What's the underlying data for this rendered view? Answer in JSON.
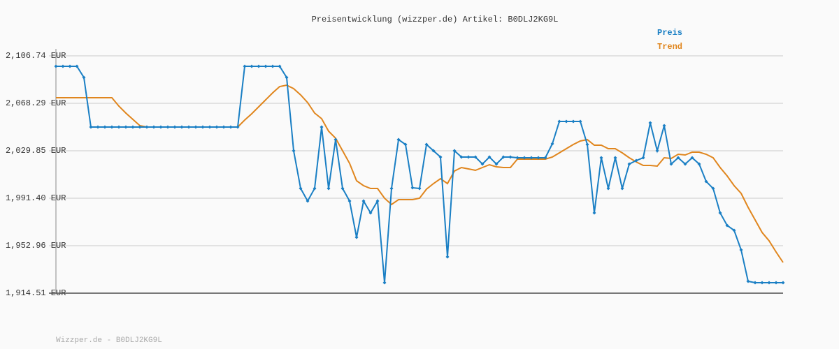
{
  "chart_data": {
    "type": "line",
    "title": "Preisentwicklung (wizzper.de) Artikel: B0DLJ2KG9L",
    "footer": "Wizzper.de - B0DLJ2KG9L",
    "ylim": [
      1914.51,
      2106.74
    ],
    "yticks": [
      {
        "value": 1914.51,
        "label": "1,914.51 EUR"
      },
      {
        "value": 1952.96,
        "label": "1,952.96 EUR"
      },
      {
        "value": 1991.4,
        "label": "1,991.40 EUR"
      },
      {
        "value": 2029.85,
        "label": "2,029.85 EUR"
      },
      {
        "value": 2068.29,
        "label": "2,068.29 EUR"
      },
      {
        "value": 2106.74,
        "label": "2,106.74 EUR"
      }
    ],
    "grid": true,
    "legend": "top-right",
    "series": [
      {
        "name": "Preis",
        "color": "#1a7fc4",
        "values": [
          2098.26,
          2098.26,
          2098.26,
          2098.26,
          2089.21,
          2049.07,
          2049.07,
          2049.07,
          2049.07,
          2049.07,
          2049.07,
          2049.07,
          2049.07,
          2049.07,
          2049.07,
          2049.07,
          2049.07,
          2049.07,
          2049.07,
          2049.07,
          2049.07,
          2049.07,
          2049.07,
          2049.07,
          2049.07,
          2049.07,
          2049.07,
          2098.26,
          2098.26,
          2098.26,
          2098.26,
          2098.26,
          2098.26,
          2089.21,
          2029.85,
          1999.32,
          1989.14,
          1999.32,
          2049.07,
          1999.32,
          2038.89,
          1999.32,
          1989.14,
          1959.74,
          1989.14,
          1979.53,
          1989.14,
          1922.99,
          1999.32,
          2038.89,
          2034.94,
          1999.88,
          1999.32,
          2034.94,
          2029.85,
          2024.76,
          1943.91,
          2029.85,
          2024.76,
          2024.76,
          2024.76,
          2019.11,
          2024.76,
          2019.11,
          2024.76,
          2024.76,
          2024.19,
          2024.19,
          2024.19,
          2024.19,
          2024.19,
          2035.5,
          2053.59,
          2053.59,
          2053.59,
          2053.59,
          2034.94,
          1979.53,
          2024.19,
          1999.32,
          2024.19,
          1999.32,
          2019.11,
          2021.93,
          2024.19,
          2052.47,
          2029.85,
          2050.21,
          2019.11,
          2024.19,
          2019.11,
          2024.19,
          2019.11,
          2004.97,
          1999.32,
          1979.53,
          1969.35,
          1965.4,
          1949.57,
          1924.13,
          1922.99,
          1922.99,
          1922.99,
          1922.99,
          1922.99
        ]
      },
      {
        "name": "Trend",
        "color": "#e0861e",
        "values": [
          2072.82,
          2072.82,
          2072.82,
          2072.82,
          2072.82,
          2072.82,
          2072.82,
          2072.82,
          2072.82,
          2066.03,
          2060.38,
          2055.29,
          2050.2,
          2049.07,
          2049.07,
          2049.07,
          2049.07,
          2049.07,
          2049.07,
          2049.07,
          2049.07,
          2049.07,
          2049.07,
          2049.07,
          2049.07,
          2049.07,
          2049.07,
          2054.73,
          2059.81,
          2065.47,
          2071.12,
          2076.77,
          2081.86,
          2082.99,
          2080.17,
          2075.08,
          2068.86,
          2060.38,
          2055.86,
          2045.68,
          2040.03,
          2029.85,
          2019.67,
          2005.54,
          2001.58,
          1999.32,
          1999.32,
          1991.4,
          1986.31,
          1990.27,
          1990.27,
          1990.27,
          1991.4,
          1998.75,
          2003.28,
          2007.23,
          2003.28,
          2013.45,
          2016.28,
          2015.15,
          2014.02,
          2016.28,
          2018.54,
          2016.84,
          2016.28,
          2016.28,
          2023.06,
          2023.06,
          2023.06,
          2023.06,
          2023.06,
          2024.76,
          2028.15,
          2031.55,
          2034.94,
          2037.76,
          2038.89,
          2034.37,
          2034.37,
          2031.55,
          2031.55,
          2028.15,
          2024.19,
          2020.8,
          2017.98,
          2017.98,
          2017.41,
          2024.19,
          2023.63,
          2027.02,
          2026.46,
          2028.72,
          2028.72,
          2027.02,
          2024.19,
          2016.28,
          2009.49,
          2001.58,
          1995.36,
          1984.05,
          1973.88,
          1963.7,
          1956.92,
          1947.87,
          1939.39
        ]
      }
    ]
  }
}
